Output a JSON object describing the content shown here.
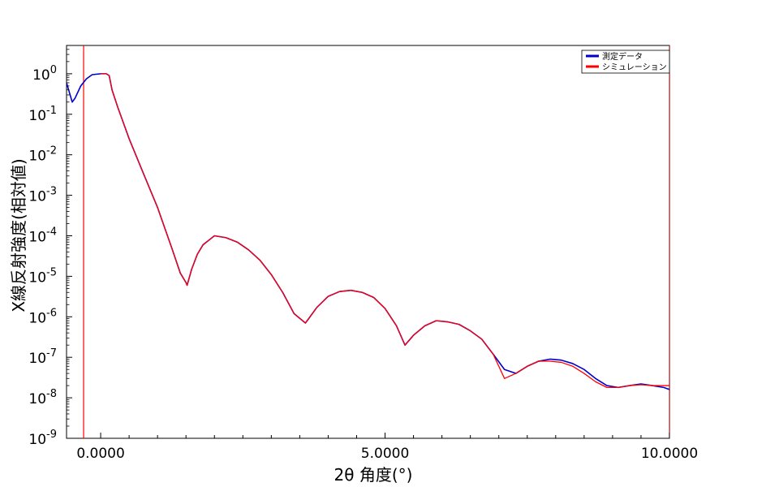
{
  "chart_data": {
    "type": "line",
    "xlabel": "2θ 角度(°)",
    "ylabel": "X線反射強度(相対値)",
    "xlim": [
      -0.6,
      10.0
    ],
    "ylim": [
      1e-09,
      5
    ],
    "y_scale": "log",
    "x_ticks": [
      {
        "value": 0,
        "label": "0.0000"
      },
      {
        "value": 5,
        "label": "5.0000"
      },
      {
        "value": 10,
        "label": "10.0000"
      }
    ],
    "y_ticks": [
      {
        "exp": 0,
        "base": "10",
        "sup": "0"
      },
      {
        "exp": -1,
        "base": "10",
        "sup": "-1"
      },
      {
        "exp": -2,
        "base": "10",
        "sup": "-2"
      },
      {
        "exp": -3,
        "base": "10",
        "sup": "-3"
      },
      {
        "exp": -4,
        "base": "10",
        "sup": "-4"
      },
      {
        "exp": -5,
        "base": "10",
        "sup": "-5"
      },
      {
        "exp": -6,
        "base": "10",
        "sup": "-6"
      },
      {
        "exp": -7,
        "base": "10",
        "sup": "-7"
      },
      {
        "exp": -8,
        "base": "10",
        "sup": "-8"
      },
      {
        "exp": -9,
        "base": "10",
        "sup": "-9"
      }
    ],
    "grid": false,
    "legend": {
      "position": "top-right",
      "entries": [
        {
          "name": "測定データ",
          "color": "#0000cc"
        },
        {
          "name": "シミュレーション",
          "color": "#ff0000"
        }
      ]
    },
    "vertical_markers": [
      {
        "x": -0.3,
        "color": "#ff0000"
      },
      {
        "x": 10.0,
        "color": "#ff0000"
      }
    ],
    "series": [
      {
        "name": "測定データ",
        "color": "#0000cc",
        "x": [
          -0.6,
          -0.5,
          -0.45,
          -0.35,
          -0.25,
          -0.15,
          0.0,
          0.1,
          0.15,
          0.2,
          0.3,
          0.5,
          0.75,
          1.0,
          1.25,
          1.4,
          1.5,
          1.52,
          1.6,
          1.7,
          1.8,
          2.0,
          2.2,
          2.4,
          2.6,
          2.8,
          3.0,
          3.2,
          3.4,
          3.6,
          3.8,
          4.0,
          4.2,
          4.4,
          4.6,
          4.8,
          5.0,
          5.2,
          5.35,
          5.5,
          5.7,
          5.9,
          6.1,
          6.3,
          6.5,
          6.7,
          6.9,
          7.1,
          7.3,
          7.5,
          7.7,
          7.9,
          8.1,
          8.3,
          8.5,
          8.7,
          8.9,
          9.1,
          9.3,
          9.5,
          9.7,
          9.9,
          10.0
        ],
        "values": [
          0.6,
          0.2,
          0.25,
          0.5,
          0.75,
          0.95,
          1.0,
          1.0,
          0.9,
          0.4,
          0.15,
          0.025,
          0.0035,
          0.0005,
          5e-05,
          1.2e-05,
          7e-06,
          6e-06,
          1.5e-05,
          3.5e-05,
          6e-05,
          0.0001,
          9e-05,
          7e-05,
          4.5e-05,
          2.5e-05,
          1.1e-05,
          4e-06,
          1.2e-06,
          7e-07,
          1.7e-06,
          3.2e-06,
          4.2e-06,
          4.5e-06,
          4e-06,
          3e-06,
          1.6e-06,
          6e-07,
          2e-07,
          3.5e-07,
          6e-07,
          8e-07,
          7.5e-07,
          6.5e-07,
          4.5e-07,
          2.8e-07,
          1.2e-07,
          5e-08,
          4e-08,
          6e-08,
          8e-08,
          9e-08,
          8.5e-08,
          7e-08,
          5e-08,
          3e-08,
          2e-08,
          1.8e-08,
          2e-08,
          2.2e-08,
          2e-08,
          1.8e-08,
          1.6e-08
        ]
      },
      {
        "name": "シミュレーション",
        "color": "#ff0000",
        "x": [
          0.0,
          0.1,
          0.15,
          0.2,
          0.3,
          0.5,
          0.75,
          1.0,
          1.25,
          1.4,
          1.5,
          1.52,
          1.6,
          1.7,
          1.8,
          2.0,
          2.2,
          2.4,
          2.6,
          2.8,
          3.0,
          3.2,
          3.4,
          3.6,
          3.8,
          4.0,
          4.2,
          4.4,
          4.6,
          4.8,
          5.0,
          5.2,
          5.35,
          5.5,
          5.7,
          5.9,
          6.1,
          6.3,
          6.5,
          6.7,
          6.9,
          7.1,
          7.3,
          7.5,
          7.7,
          7.9,
          8.1,
          8.3,
          8.5,
          8.7,
          8.9,
          9.1,
          9.3,
          9.5,
          9.7,
          9.9,
          10.0
        ],
        "values": [
          1.0,
          1.0,
          0.9,
          0.4,
          0.15,
          0.025,
          0.0035,
          0.0005,
          5e-05,
          1.2e-05,
          7e-06,
          6e-06,
          1.5e-05,
          3.5e-05,
          6e-05,
          0.0001,
          9e-05,
          7e-05,
          4.5e-05,
          2.5e-05,
          1.1e-05,
          4e-06,
          1.2e-06,
          7e-07,
          1.7e-06,
          3.2e-06,
          4.2e-06,
          4.5e-06,
          4e-06,
          3e-06,
          1.6e-06,
          6e-07,
          2e-07,
          3.5e-07,
          6e-07,
          8e-07,
          7.5e-07,
          6.5e-07,
          4.5e-07,
          2.8e-07,
          1.2e-07,
          3e-08,
          4e-08,
          6e-08,
          8e-08,
          8e-08,
          7.5e-08,
          6e-08,
          4e-08,
          2.5e-08,
          1.8e-08,
          1.8e-08,
          2e-08,
          2.1e-08,
          2e-08,
          2e-08,
          2e-08
        ]
      }
    ]
  }
}
